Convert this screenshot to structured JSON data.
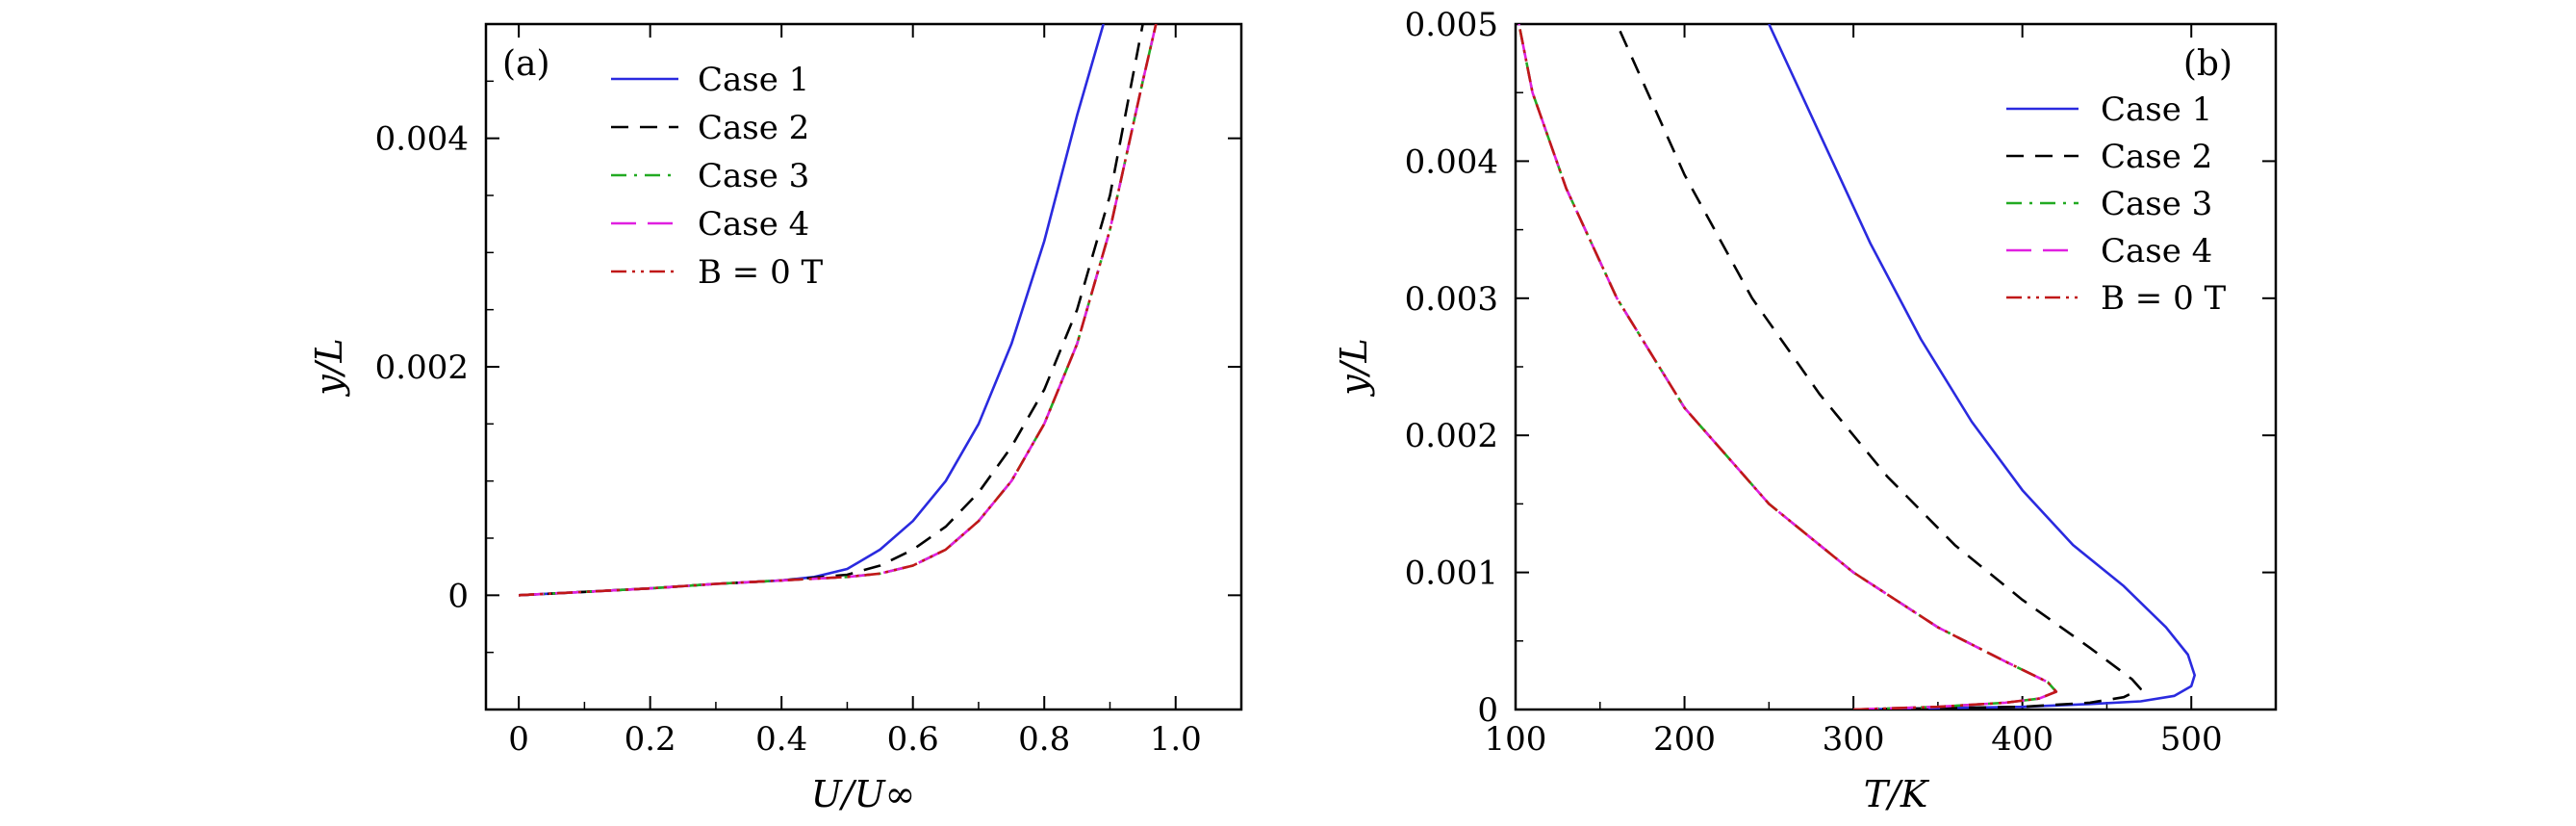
{
  "chart_data": [
    {
      "type": "line",
      "panel_label": "(a)",
      "xlabel": "U/U∞",
      "ylabel": "y/L",
      "xlim": [
        -0.05,
        1.1
      ],
      "ylim": [
        -0.001,
        0.005
      ],
      "x_ticks": [
        0,
        0.2,
        0.4,
        0.6,
        0.8,
        1.0
      ],
      "x_tick_labels": [
        "0",
        "0.2",
        "0.4",
        "0.6",
        "0.8",
        "1.0"
      ],
      "y_ticks": [
        0,
        0.002,
        0.004
      ],
      "y_tick_labels": [
        "0",
        "0.002",
        "0.004"
      ],
      "legend_position": "top-center",
      "series": [
        {
          "name": "Case 1",
          "color": "#2a2adf",
          "dash": "solid",
          "x": [
            0,
            0.1,
            0.2,
            0.3,
            0.4,
            0.45,
            0.5,
            0.55,
            0.6,
            0.65,
            0.7,
            0.75,
            0.8,
            0.85,
            0.89
          ],
          "y": [
            0,
            3e-05,
            6e-05,
            0.0001,
            0.00013,
            0.00016,
            0.00023,
            0.0004,
            0.00065,
            0.001,
            0.0015,
            0.0022,
            0.0031,
            0.0042,
            0.005
          ]
        },
        {
          "name": "Case 2",
          "color": "#000000",
          "dash": "dashed",
          "x": [
            0,
            0.1,
            0.2,
            0.3,
            0.4,
            0.5,
            0.55,
            0.6,
            0.65,
            0.7,
            0.75,
            0.8,
            0.85,
            0.9,
            0.95
          ],
          "y": [
            0,
            3e-05,
            6e-05,
            0.0001,
            0.00013,
            0.00018,
            0.00026,
            0.0004,
            0.0006,
            0.0009,
            0.0013,
            0.0018,
            0.0025,
            0.0035,
            0.005
          ]
        },
        {
          "name": "Case 3",
          "color": "#22aa22",
          "dash": "dashdot",
          "x": [
            0,
            0.1,
            0.2,
            0.3,
            0.4,
            0.5,
            0.55,
            0.6,
            0.65,
            0.7,
            0.75,
            0.8,
            0.85,
            0.9,
            0.95,
            0.97
          ],
          "y": [
            0,
            3e-05,
            6e-05,
            0.0001,
            0.00013,
            0.00016,
            0.00019,
            0.00026,
            0.0004,
            0.00065,
            0.001,
            0.0015,
            0.0022,
            0.0032,
            0.0045,
            0.005
          ]
        },
        {
          "name": "Case 4",
          "color": "#e020e0",
          "dash": "longdash",
          "x": [
            0,
            0.1,
            0.2,
            0.3,
            0.4,
            0.5,
            0.55,
            0.6,
            0.65,
            0.7,
            0.75,
            0.8,
            0.85,
            0.9,
            0.95,
            0.97
          ],
          "y": [
            0,
            3e-05,
            6e-05,
            0.0001,
            0.00013,
            0.00016,
            0.00019,
            0.00026,
            0.0004,
            0.00065,
            0.001,
            0.0015,
            0.0022,
            0.0032,
            0.0045,
            0.005
          ]
        },
        {
          "name": "B = 0 T",
          "color": "#c01818",
          "dash": "dashdotdot",
          "x": [
            0,
            0.1,
            0.2,
            0.3,
            0.4,
            0.5,
            0.55,
            0.6,
            0.65,
            0.7,
            0.75,
            0.8,
            0.85,
            0.9,
            0.95,
            0.97
          ],
          "y": [
            0,
            3e-05,
            6e-05,
            0.0001,
            0.00013,
            0.00016,
            0.00019,
            0.00026,
            0.0004,
            0.00065,
            0.001,
            0.0015,
            0.0022,
            0.0032,
            0.0045,
            0.005
          ]
        }
      ]
    },
    {
      "type": "line",
      "panel_label": "(b)",
      "xlabel": "T/K",
      "ylabel": "y/L",
      "xlim": [
        100,
        550
      ],
      "ylim": [
        0,
        0.005
      ],
      "x_ticks": [
        100,
        200,
        300,
        400,
        500
      ],
      "x_tick_labels": [
        "100",
        "200",
        "300",
        "400",
        "500"
      ],
      "y_ticks": [
        0,
        0.001,
        0.002,
        0.003,
        0.004,
        0.005
      ],
      "y_tick_labels": [
        "0",
        "0.001",
        "0.002",
        "0.003",
        "0.004",
        "0.005"
      ],
      "legend_position": "top-right",
      "series": [
        {
          "name": "Case 1",
          "color": "#2a2adf",
          "dash": "solid",
          "x": [
            300,
            350,
            400,
            440,
            470,
            490,
            500,
            502,
            498,
            485,
            460,
            430,
            400,
            370,
            340,
            310,
            280,
            250
          ],
          "y": [
            0,
            1e-05,
            2e-05,
            4e-05,
            6e-05,
            0.0001,
            0.00017,
            0.00025,
            0.0004,
            0.0006,
            0.0009,
            0.0012,
            0.0016,
            0.0021,
            0.0027,
            0.0034,
            0.0042,
            0.005
          ]
        },
        {
          "name": "Case 2",
          "color": "#000000",
          "dash": "dashed",
          "x": [
            300,
            350,
            400,
            440,
            460,
            470,
            465,
            440,
            400,
            360,
            320,
            280,
            240,
            200,
            160
          ],
          "y": [
            0,
            1e-05,
            2e-05,
            5e-05,
            9e-05,
            0.00015,
            0.00022,
            0.00045,
            0.0008,
            0.0012,
            0.0017,
            0.0023,
            0.003,
            0.0039,
            0.005
          ]
        },
        {
          "name": "Case 3",
          "color": "#22aa22",
          "dash": "dashdot",
          "x": [
            300,
            350,
            390,
            410,
            420,
            415,
            390,
            350,
            300,
            250,
            200,
            160,
            130,
            110,
            102
          ],
          "y": [
            0,
            2e-05,
            5e-05,
            8e-05,
            0.00013,
            0.0002,
            0.00035,
            0.0006,
            0.001,
            0.0015,
            0.0022,
            0.003,
            0.0038,
            0.0045,
            0.005
          ]
        },
        {
          "name": "Case 4",
          "color": "#e020e0",
          "dash": "longdash",
          "x": [
            300,
            350,
            390,
            410,
            420,
            415,
            390,
            350,
            300,
            250,
            200,
            160,
            130,
            110,
            102
          ],
          "y": [
            0,
            2e-05,
            5e-05,
            8e-05,
            0.00013,
            0.0002,
            0.00035,
            0.0006,
            0.001,
            0.0015,
            0.0022,
            0.003,
            0.0038,
            0.0045,
            0.005
          ]
        },
        {
          "name": "B = 0 T",
          "color": "#c01818",
          "dash": "dashdotdot",
          "x": [
            300,
            350,
            390,
            410,
            420,
            415,
            390,
            350,
            300,
            250,
            200,
            160,
            130,
            110,
            102
          ],
          "y": [
            0,
            2e-05,
            5e-05,
            8e-05,
            0.00013,
            0.0002,
            0.00035,
            0.0006,
            0.001,
            0.0015,
            0.0022,
            0.003,
            0.0038,
            0.0045,
            0.005
          ]
        }
      ]
    }
  ]
}
